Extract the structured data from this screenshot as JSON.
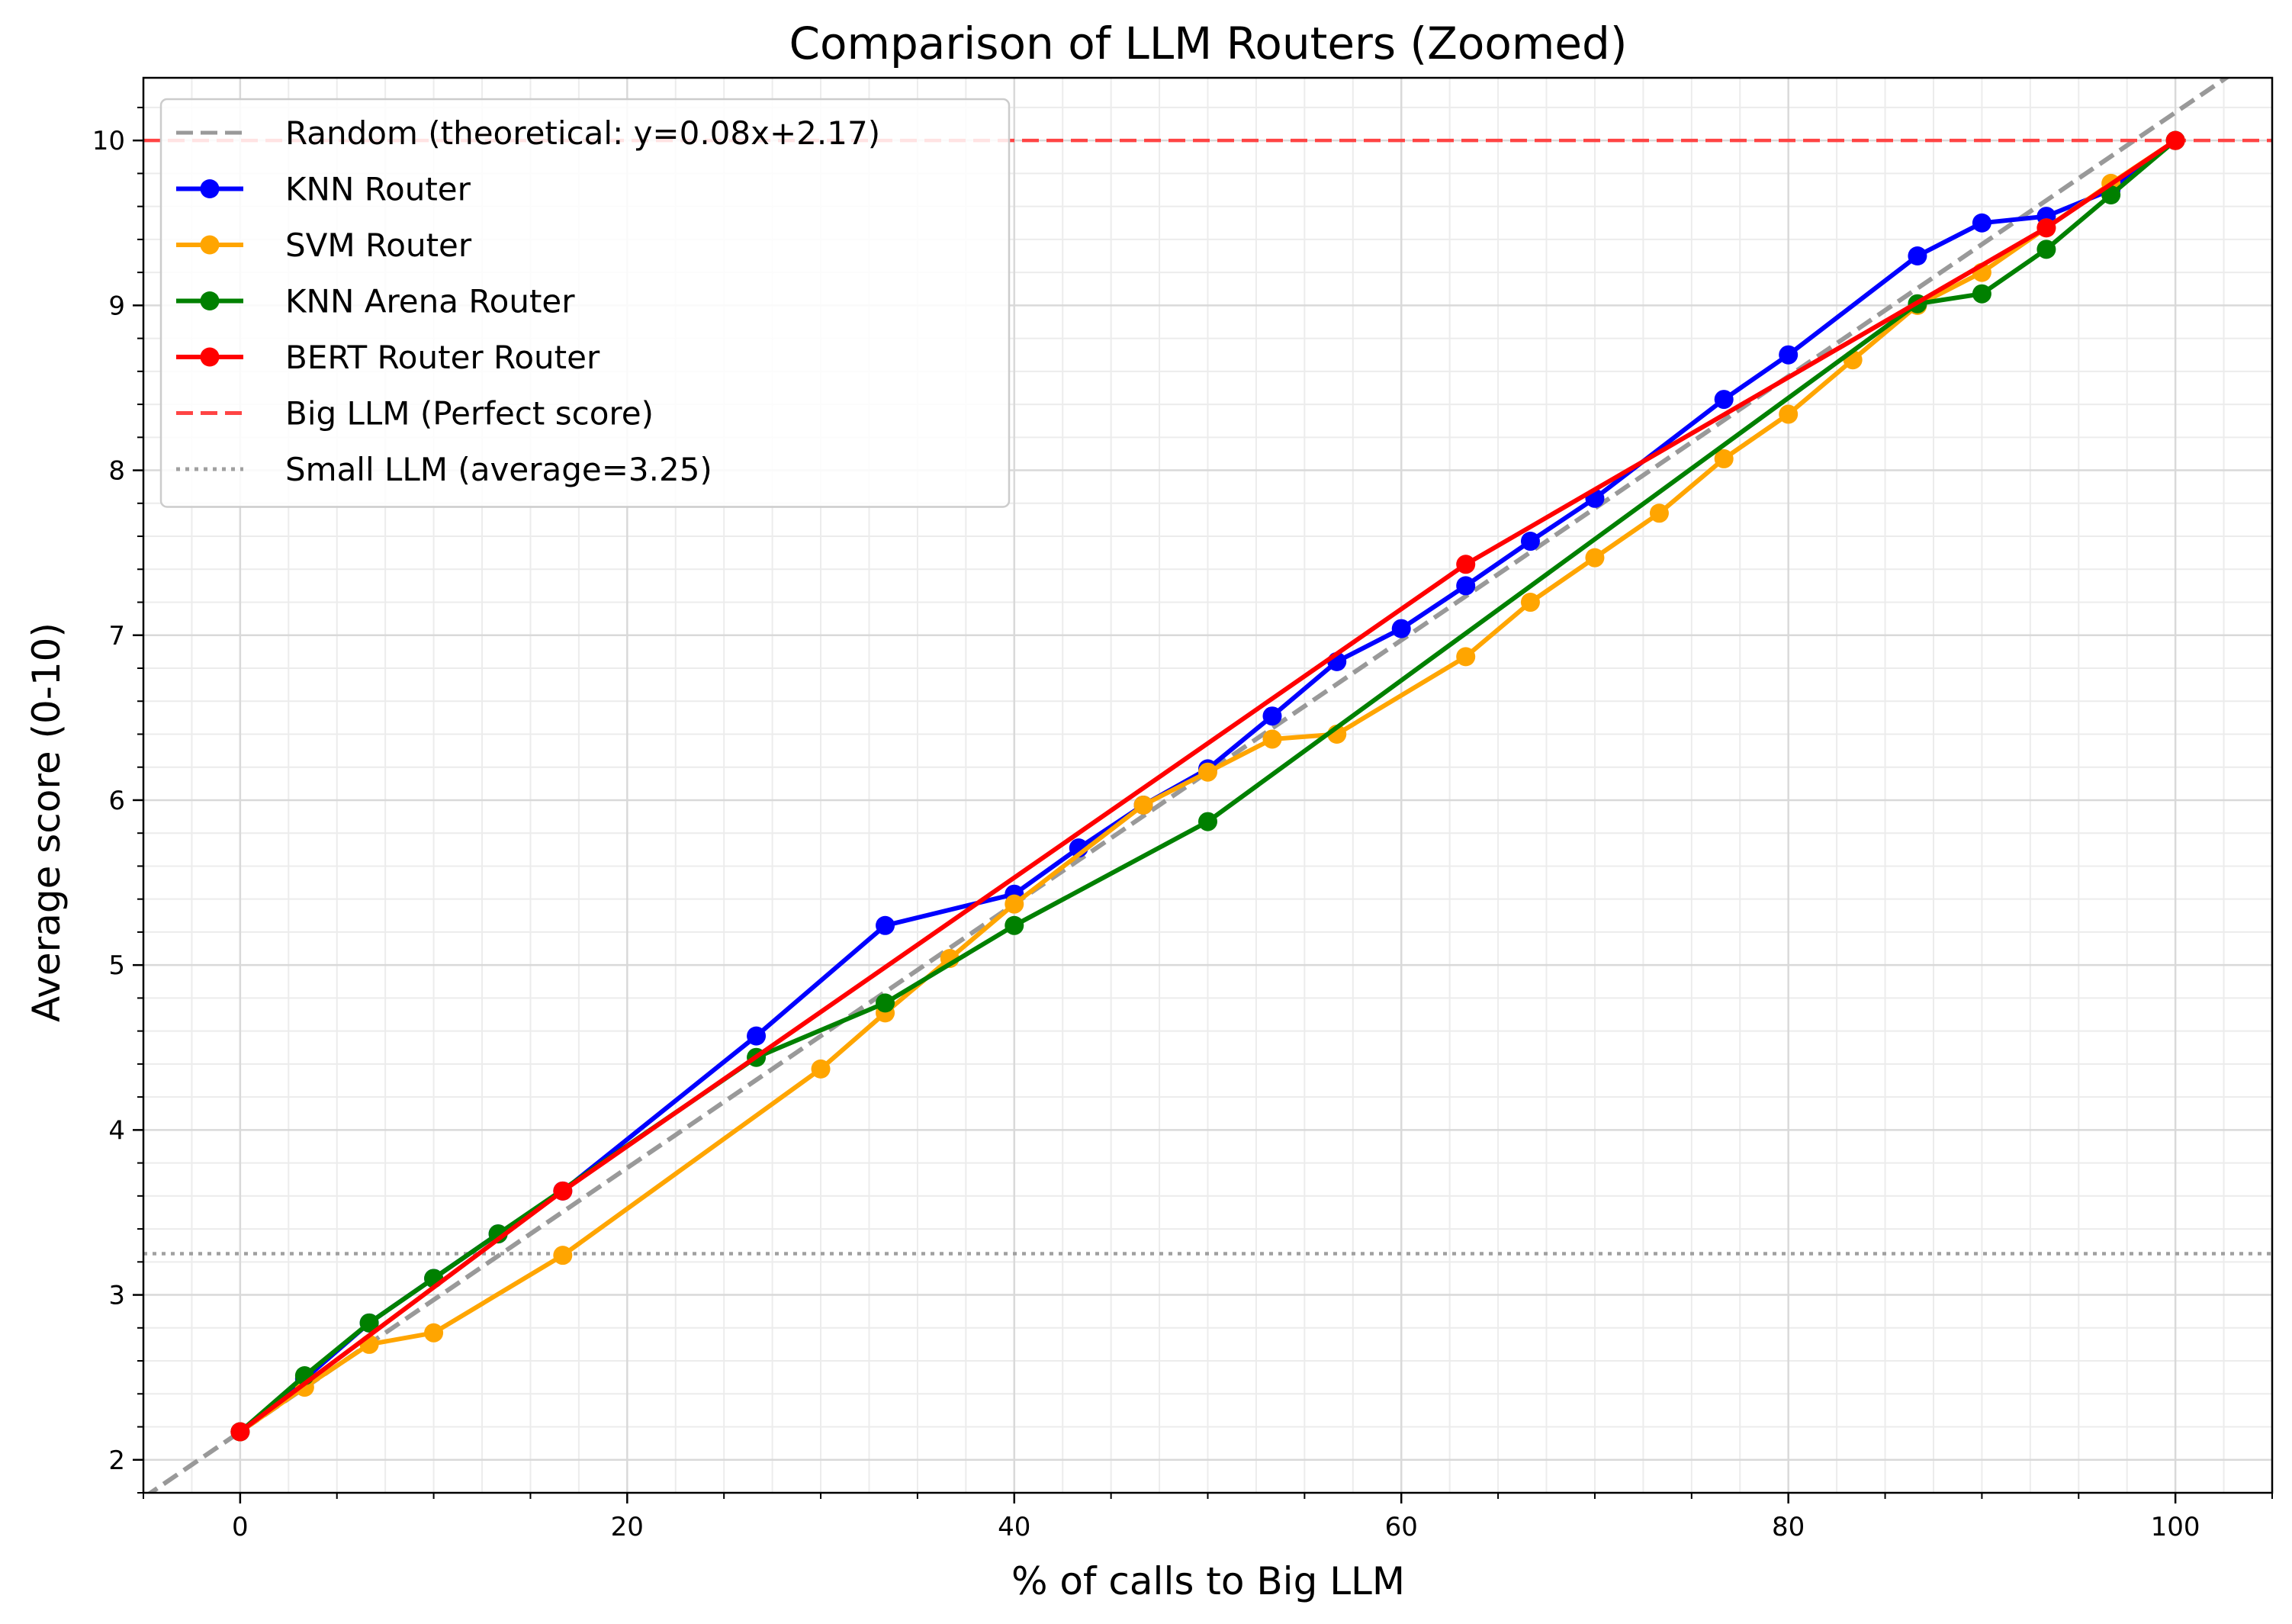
{
  "chart_data": {
    "type": "line",
    "title": "Comparison of LLM Routers (Zoomed)",
    "xlabel": "% of calls to Big LLM",
    "ylabel": "Average score (0-10)",
    "xlim": [
      -5,
      105
    ],
    "ylim": [
      1.8,
      10.38
    ],
    "x_ticks": [
      0,
      20,
      40,
      60,
      80,
      100
    ],
    "y_ticks": [
      2,
      3,
      4,
      5,
      6,
      7,
      8,
      9,
      10
    ],
    "x_tick_labels": [
      "0",
      "20",
      "40",
      "60",
      "80",
      "100"
    ],
    "y_tick_labels": [
      "2",
      "3",
      "4",
      "5",
      "6",
      "7",
      "8",
      "9",
      "10"
    ],
    "grid": true,
    "minor_grid": true,
    "legend_position": "top-left",
    "series": [
      {
        "name": "KNN Router",
        "color": "#0000ff",
        "style": "line-marker",
        "x": [
          0,
          3.33,
          6.67,
          10,
          13.33,
          16.67,
          26.67,
          33.33,
          40,
          43.33,
          46.67,
          50,
          53.33,
          56.67,
          60,
          63.33,
          66.67,
          70,
          76.67,
          80,
          86.67,
          90,
          93.33,
          96.67,
          100
        ],
        "y": [
          2.17,
          2.49,
          2.83,
          3.1,
          3.37,
          3.63,
          4.57,
          5.24,
          5.43,
          5.71,
          5.97,
          6.19,
          6.51,
          6.84,
          7.04,
          7.3,
          7.57,
          7.83,
          8.43,
          8.7,
          9.3,
          9.5,
          9.54,
          9.7,
          10.0
        ]
      },
      {
        "name": "SVM Router",
        "color": "#ffa500",
        "style": "line-marker",
        "x": [
          0,
          3.33,
          6.67,
          10,
          16.67,
          30,
          33.33,
          36.67,
          40,
          46.67,
          50,
          53.33,
          56.67,
          63.33,
          66.67,
          70,
          73.33,
          76.67,
          80,
          83.33,
          86.67,
          90,
          93.33,
          96.67,
          100
        ],
        "y": [
          2.17,
          2.44,
          2.7,
          2.77,
          3.24,
          4.37,
          4.71,
          5.04,
          5.37,
          5.97,
          6.17,
          6.37,
          6.4,
          6.87,
          7.2,
          7.47,
          7.74,
          8.07,
          8.34,
          8.67,
          9.0,
          9.2,
          9.47,
          9.74,
          10.0
        ]
      },
      {
        "name": "KNN Arena Router",
        "color": "#008000",
        "style": "line-marker",
        "x": [
          0,
          3.33,
          6.67,
          10,
          13.33,
          26.67,
          33.33,
          40,
          50,
          86.67,
          90,
          93.33,
          96.67,
          100
        ],
        "y": [
          2.17,
          2.51,
          2.83,
          3.1,
          3.37,
          4.44,
          4.77,
          5.24,
          5.87,
          9.01,
          9.07,
          9.34,
          9.67,
          10.0
        ]
      },
      {
        "name": "BERT Router Router",
        "color": "#ff0000",
        "style": "line-marker",
        "x": [
          0,
          16.67,
          63.33,
          93.33,
          100
        ],
        "y": [
          2.17,
          3.63,
          7.43,
          9.47,
          10.0
        ]
      }
    ],
    "reference_lines": [
      {
        "name": "Random (theoretical: y=0.08x+2.17)",
        "kind": "diagonal",
        "slope": 0.08,
        "intercept": 2.17,
        "color": "#999999",
        "dash": "dashed"
      },
      {
        "name": "Big LLM (Perfect score)",
        "kind": "horizontal",
        "y": 10,
        "color": "#ff4444",
        "dash": "dashed"
      },
      {
        "name": "Small LLM (average=3.25)",
        "kind": "horizontal",
        "y": 3.25,
        "color": "#a0a0a0",
        "dash": "dotted"
      }
    ]
  },
  "legend": {
    "entries": [
      {
        "label": "Random (theoretical: y=0.08x+2.17)",
        "color": "#999999",
        "kind": "dashed"
      },
      {
        "label": "KNN Router",
        "color": "#0000ff",
        "kind": "line-marker"
      },
      {
        "label": "SVM Router",
        "color": "#ffa500",
        "kind": "line-marker"
      },
      {
        "label": "KNN Arena Router",
        "color": "#008000",
        "kind": "line-marker"
      },
      {
        "label": "BERT Router Router",
        "color": "#ff0000",
        "kind": "line-marker"
      },
      {
        "label": "Big LLM (Perfect score)",
        "color": "#ff4444",
        "kind": "dashed"
      },
      {
        "label": "Small LLM (average=3.25)",
        "color": "#a0a0a0",
        "kind": "dotted"
      }
    ]
  }
}
